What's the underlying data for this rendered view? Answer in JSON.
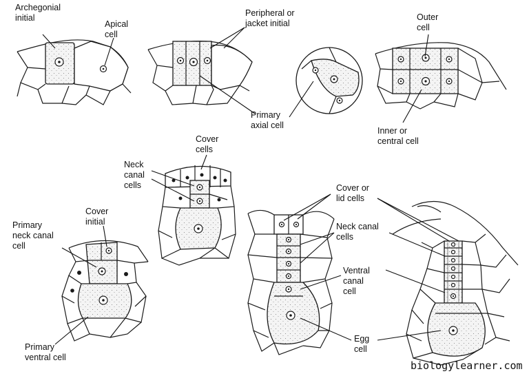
{
  "labels": {
    "archegonial_initial": [
      "Archegonial",
      "initial"
    ],
    "apical_cell": [
      "Apical",
      "cell"
    ],
    "peripheral_jacket_initial": [
      "Peripheral or",
      "jacket initial"
    ],
    "outer_cell": [
      "Outer",
      "cell"
    ],
    "primary_axial_cell": [
      "Primary",
      "axial cell"
    ],
    "inner_central_cell": [
      "Inner or",
      "central cell"
    ],
    "cover_cells": [
      "Cover",
      "cells"
    ],
    "neck_canal_cells": [
      "Neck",
      "canal",
      "cells"
    ],
    "cover_initial": [
      "Cover",
      "initial"
    ],
    "primary_neck_canal_cell": [
      "Primary",
      "neck canal",
      "cell"
    ],
    "primary_ventral_cell": [
      "Primary",
      "ventral cell"
    ],
    "cover_lid_cells": [
      "Cover or",
      "lid cells"
    ],
    "neck_canal_cells_2": [
      "Neck canal",
      "cells"
    ],
    "ventral_canal_cell": [
      "Ventral",
      "canal",
      "cell"
    ],
    "egg_cell": [
      "Egg",
      "cell"
    ]
  },
  "watermark": "biologylearner.com"
}
